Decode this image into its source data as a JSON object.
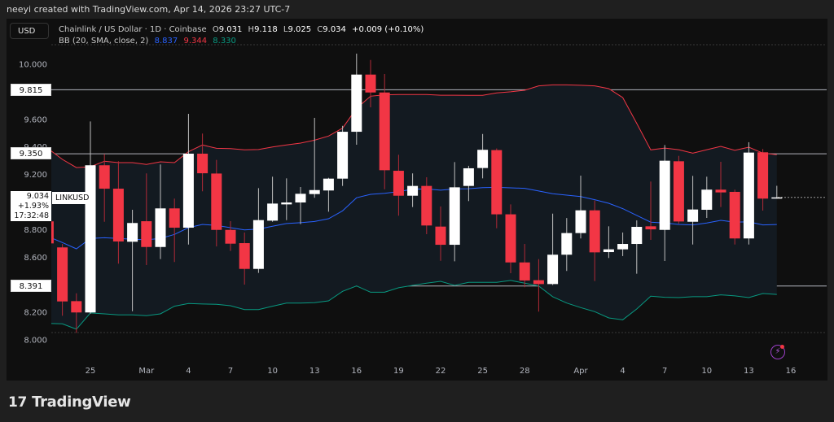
{
  "credit": "neeyi created with TradingView.com, Apr 14, 2026 23:27 UTC-7",
  "currency_button": "USD",
  "legend": {
    "symbol": "Chainlink / US Dollar · 1D · Coinbase",
    "open_k": "O",
    "open": "9.031",
    "high_k": "H",
    "high": "9.118",
    "low_k": "L",
    "low": "9.025",
    "close_k": "C",
    "close": "9.034",
    "change": "+0.009 (+0.10%)",
    "bb_label": "BB (20, SMA, close, 2)",
    "bb_basis": "8.837",
    "bb_upper": "9.344",
    "bb_lower": "8.330"
  },
  "price_tag": {
    "price": "9.034",
    "change_pct": "+1.93%",
    "countdown": "17:32:48",
    "symbol": "LINKUSD"
  },
  "levels": [
    {
      "label": "9.815",
      "value": 9.815
    },
    {
      "label": "9.350",
      "value": 9.35
    },
    {
      "label": "8.391",
      "value": 8.391
    }
  ],
  "y_ticks": [
    "10.000",
    "9.600",
    "9.400",
    "9.200",
    "8.800",
    "8.600",
    "8.200",
    "8.000"
  ],
  "x_ticks": [
    {
      "label": "25",
      "date": "2026-02-25"
    },
    {
      "label": "Mar",
      "date": "2026-03-01"
    },
    {
      "label": "4",
      "date": "2026-03-04"
    },
    {
      "label": "7",
      "date": "2026-03-07"
    },
    {
      "label": "10",
      "date": "2026-03-10"
    },
    {
      "label": "13",
      "date": "2026-03-13"
    },
    {
      "label": "16",
      "date": "2026-03-16"
    },
    {
      "label": "19",
      "date": "2026-03-19"
    },
    {
      "label": "22",
      "date": "2026-03-22"
    },
    {
      "label": "25",
      "date": "2026-03-25"
    },
    {
      "label": "28",
      "date": "2026-03-28"
    },
    {
      "label": "Apr",
      "date": "2026-04-01"
    },
    {
      "label": "4",
      "date": "2026-04-04"
    },
    {
      "label": "7",
      "date": "2026-04-07"
    },
    {
      "label": "10",
      "date": "2026-04-10"
    },
    {
      "label": "13",
      "date": "2026-04-13"
    },
    {
      "label": "16",
      "date": "2026-04-16"
    }
  ],
  "colors": {
    "up": "#ffffff",
    "down": "#f23645",
    "bb_basis": "#2962ff",
    "bb_upper": "#f23645",
    "bb_lower": "#089981",
    "level_line": "#b2b5be"
  },
  "icons": {
    "brand": "tradingview-logo",
    "alert": "lightning-icon"
  },
  "brand": {
    "mark": "17",
    "name": "TradingView"
  },
  "chart_data": {
    "type": "candlestick",
    "title": "Chainlink / US Dollar · 1D · Coinbase",
    "ylim": [
      8.0,
      10.0
    ],
    "grid": false,
    "columns": [
      "date",
      "open",
      "high",
      "low",
      "close"
    ],
    "candles": [
      [
        "2026-02-22",
        8.86,
        8.95,
        8.7,
        8.7
      ],
      [
        "2026-02-23",
        8.671,
        8.696,
        8.175,
        8.279
      ],
      [
        "2026-02-24",
        8.281,
        8.338,
        8.051,
        8.199
      ],
      [
        "2026-02-25",
        8.199,
        9.585,
        8.19,
        9.267
      ],
      [
        "2026-02-26",
        9.267,
        9.349,
        8.857,
        9.097
      ],
      [
        "2026-02-27",
        9.097,
        9.296,
        8.553,
        8.714
      ],
      [
        "2026-02-28",
        8.712,
        8.944,
        8.208,
        8.848
      ],
      [
        "2026-03-01",
        8.861,
        9.208,
        8.543,
        8.674
      ],
      [
        "2026-03-02",
        8.674,
        9.273,
        8.586,
        8.954
      ],
      [
        "2026-03-03",
        8.954,
        9.025,
        8.565,
        8.814
      ],
      [
        "2026-03-04",
        8.814,
        9.64,
        8.692,
        9.351
      ],
      [
        "2026-03-05",
        9.351,
        9.497,
        9.078,
        9.209
      ],
      [
        "2026-03-06",
        9.207,
        9.306,
        8.678,
        8.798
      ],
      [
        "2026-03-07",
        8.798,
        8.861,
        8.645,
        8.698
      ],
      [
        "2026-03-08",
        8.702,
        8.779,
        8.401,
        8.515
      ],
      [
        "2026-03-09",
        8.515,
        9.101,
        8.486,
        8.869
      ],
      [
        "2026-03-10",
        8.865,
        9.184,
        8.857,
        8.989
      ],
      [
        "2026-03-11",
        8.983,
        9.172,
        8.869,
        8.997
      ],
      [
        "2026-03-12",
        8.997,
        9.109,
        8.84,
        9.06
      ],
      [
        "2026-03-13",
        9.058,
        9.611,
        9.031,
        9.087
      ],
      [
        "2026-03-14",
        9.084,
        9.176,
        8.93,
        9.17
      ],
      [
        "2026-03-15",
        9.17,
        9.553,
        9.117,
        9.51
      ],
      [
        "2026-03-16",
        9.51,
        10.077,
        9.416,
        9.925
      ],
      [
        "2026-03-17",
        9.925,
        10.031,
        9.687,
        9.795
      ],
      [
        "2026-03-18",
        9.795,
        9.929,
        9.093,
        9.231
      ],
      [
        "2026-03-19",
        9.227,
        9.343,
        8.901,
        9.046
      ],
      [
        "2026-03-20",
        9.046,
        9.208,
        8.964,
        9.117
      ],
      [
        "2026-03-21",
        9.117,
        9.18,
        8.767,
        8.83
      ],
      [
        "2026-03-22",
        8.822,
        8.968,
        8.574,
        8.69
      ],
      [
        "2026-03-23",
        8.69,
        9.29,
        8.57,
        9.107
      ],
      [
        "2026-03-24",
        9.117,
        9.263,
        9.007,
        9.245
      ],
      [
        "2026-03-25",
        9.247,
        9.494,
        9.172,
        9.379
      ],
      [
        "2026-03-26",
        9.377,
        9.389,
        8.81,
        8.911
      ],
      [
        "2026-03-27",
        8.911,
        8.983,
        8.484,
        8.562
      ],
      [
        "2026-03-28",
        8.562,
        8.696,
        8.382,
        8.431
      ],
      [
        "2026-03-29",
        8.433,
        8.586,
        8.205,
        8.405
      ],
      [
        "2026-03-30",
        8.405,
        8.916,
        8.398,
        8.618
      ],
      [
        "2026-03-31",
        8.618,
        8.884,
        8.5,
        8.775
      ],
      [
        "2026-04-01",
        8.775,
        9.192,
        8.736,
        8.94
      ],
      [
        "2026-04-02",
        8.94,
        9.011,
        8.427,
        8.635
      ],
      [
        "2026-04-03",
        8.637,
        8.824,
        8.594,
        8.657
      ],
      [
        "2026-04-04",
        8.657,
        8.779,
        8.608,
        8.696
      ],
      [
        "2026-04-05",
        8.696,
        8.867,
        8.48,
        8.82
      ],
      [
        "2026-04-06",
        8.824,
        9.149,
        8.726,
        8.802
      ],
      [
        "2026-04-07",
        8.798,
        9.414,
        8.572,
        9.3
      ],
      [
        "2026-04-08",
        9.296,
        9.335,
        8.843,
        8.859
      ],
      [
        "2026-04-09",
        8.857,
        9.19,
        8.692,
        8.946
      ],
      [
        "2026-04-10",
        8.944,
        9.184,
        8.885,
        9.09
      ],
      [
        "2026-04-11",
        9.09,
        9.292,
        8.964,
        9.07
      ],
      [
        "2026-04-12",
        9.074,
        9.09,
        8.692,
        8.736
      ],
      [
        "2026-04-13",
        8.736,
        9.434,
        8.692,
        9.359
      ],
      [
        "2026-04-14",
        9.361,
        9.385,
        8.938,
        9.025
      ],
      [
        "2026-04-15",
        9.031,
        9.118,
        9.025,
        9.034
      ]
    ],
    "bb_upper": [
      9.386,
      9.31,
      9.25,
      9.256,
      9.296,
      9.286,
      9.286,
      9.273,
      9.292,
      9.286,
      9.365,
      9.414,
      9.39,
      9.388,
      9.379,
      9.381,
      9.4,
      9.414,
      9.428,
      9.449,
      9.479,
      9.536,
      9.68,
      9.768,
      9.778,
      9.78,
      9.78,
      9.78,
      9.775,
      9.775,
      9.774,
      9.774,
      9.792,
      9.8,
      9.811,
      9.843,
      9.85,
      9.85,
      9.847,
      9.843,
      9.823,
      9.758,
      9.571,
      9.379,
      9.392,
      9.38,
      9.355,
      9.38,
      9.404,
      9.375,
      9.398,
      9.355,
      9.344
    ],
    "bb_basis": [
      8.749,
      8.706,
      8.661,
      8.736,
      8.741,
      8.736,
      8.73,
      8.726,
      8.736,
      8.765,
      8.814,
      8.838,
      8.83,
      8.814,
      8.798,
      8.804,
      8.824,
      8.844,
      8.85,
      8.859,
      8.879,
      8.936,
      9.031,
      9.056,
      9.064,
      9.076,
      9.093,
      9.095,
      9.086,
      9.095,
      9.097,
      9.105,
      9.107,
      9.103,
      9.1,
      9.08,
      9.06,
      9.05,
      9.04,
      9.017,
      8.991,
      8.952,
      8.903,
      8.854,
      8.848,
      8.838,
      8.834,
      8.848,
      8.867,
      8.854,
      8.857,
      8.834,
      8.837
    ],
    "bb_lower": [
      8.12,
      8.116,
      8.077,
      8.195,
      8.189,
      8.181,
      8.181,
      8.175,
      8.189,
      8.244,
      8.264,
      8.26,
      8.258,
      8.248,
      8.22,
      8.22,
      8.244,
      8.267,
      8.267,
      8.27,
      8.283,
      8.352,
      8.391,
      8.346,
      8.346,
      8.378,
      8.395,
      8.411,
      8.425,
      8.395,
      8.417,
      8.417,
      8.417,
      8.431,
      8.411,
      8.391,
      8.313,
      8.267,
      8.234,
      8.205,
      8.159,
      8.146,
      8.224,
      8.317,
      8.309,
      8.307,
      8.313,
      8.313,
      8.327,
      8.319,
      8.307,
      8.336,
      8.33
    ]
  }
}
